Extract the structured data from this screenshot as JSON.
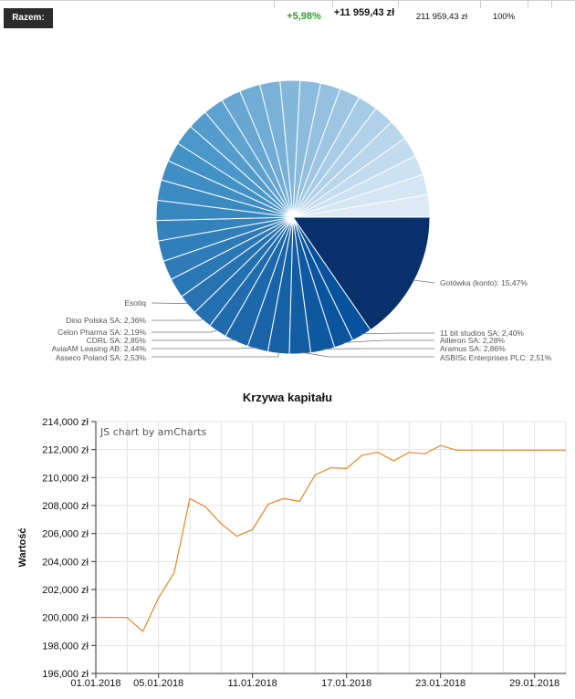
{
  "summary": {
    "label": "Razem:",
    "change_pct": "+5,98%",
    "profit": "+11 959,43 zł",
    "total_value": "211 959,43 zł",
    "share": "100%"
  },
  "chart_data": [
    {
      "type": "pie",
      "labels": [
        "Gotówka (konto): 15,47%",
        "11 bit studios SA: 2,40%",
        "Ailleron SA: 2,28%",
        "Aramus SA: 2,86%",
        "ASBISc Enterprises PLC: 2,51%",
        "Asseco Poland SA: 2,53%",
        "AviaAM Leasing AB: 2,44%",
        "CDRL SA: 2,85%",
        "Celon Pharma SA: 2,19%",
        "Dino Polska SA: 2,36%",
        "Esotiq"
      ],
      "slices_pct": [
        15.47,
        2.4,
        2.28,
        2.86,
        2.51,
        2.53,
        2.44,
        2.85,
        2.19,
        2.36,
        2.4,
        2.35,
        2.3,
        2.45,
        2.4,
        2.38,
        2.42,
        2.37,
        2.33,
        2.46,
        2.39,
        2.41,
        2.36,
        2.44,
        2.4,
        2.35,
        2.42,
        2.38,
        2.43,
        2.37,
        2.39,
        2.45,
        2.4,
        2.36,
        2.41,
        2.65
      ],
      "colors": {
        "dark": "#08306b",
        "mid": "#4292c6",
        "light": "#deebf7",
        "leader": "#777777"
      }
    },
    {
      "type": "line",
      "title": "Krzywa kapitału",
      "ylabel": "Wartość",
      "credit": "JS chart by amCharts",
      "x_ticks": [
        "01.01.2018",
        "05.01.2018",
        "11.01.2018",
        "17.01.2018",
        "23.01.2018",
        "29.01.2018"
      ],
      "y_ticks": [
        "196,000 zł",
        "198,000 zł",
        "200,000 zł",
        "202,000 zł",
        "204,000 zł",
        "206,000 zł",
        "208,000 zł",
        "210,000 zł",
        "212,000 zł",
        "214,000 zł"
      ],
      "ylim": [
        196000,
        214000
      ],
      "x_day_range": [
        1,
        31
      ],
      "x_tick_days": [
        1,
        5,
        11,
        17,
        23,
        29
      ],
      "grid_days": [
        1,
        3,
        5,
        7,
        9,
        11,
        13,
        15,
        17,
        19,
        21,
        23,
        25,
        27,
        29,
        31
      ],
      "series": [
        {
          "days": [
            1,
            2,
            3,
            4,
            5,
            6,
            7,
            8,
            9,
            10,
            11,
            12,
            13,
            14,
            15,
            16,
            17,
            18,
            19,
            20,
            21,
            22,
            23,
            24,
            25,
            26,
            27,
            28,
            29,
            30,
            31
          ],
          "values": [
            200000,
            200000,
            200000,
            199000,
            201400,
            203200,
            208500,
            207900,
            206700,
            205800,
            206300,
            208100,
            208500,
            208300,
            210200,
            210700,
            210650,
            211600,
            211800,
            211200,
            211800,
            211700,
            212300,
            211960,
            211960,
            211960,
            211960,
            211960,
            211960,
            211960,
            211960
          ]
        }
      ],
      "colors": {
        "line": "#e8862a",
        "grid": "#e3e3e3",
        "axis": "#333333"
      }
    }
  ]
}
